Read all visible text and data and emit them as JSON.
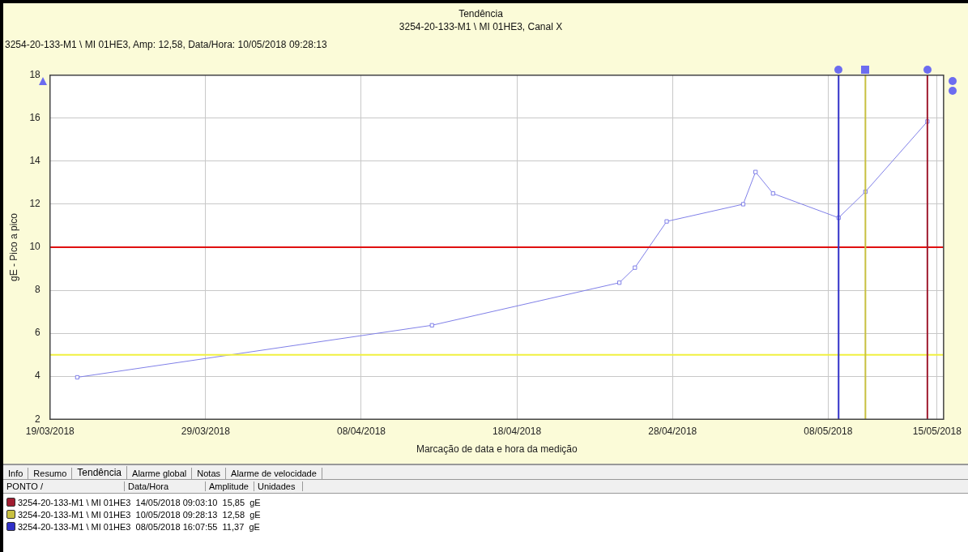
{
  "chart_data": {
    "type": "line",
    "title": "Tendência",
    "subtitle": "3254-20-133-M1 \\ MI 01HE3, Canal X",
    "xlabel": "Marcação de data e hora da medição",
    "ylabel": "gE - Pico a pico",
    "x": [
      "2018-03-20T18:00",
      "2018-04-12T13:00",
      "2018-04-24T14:00",
      "2018-04-25T14:00",
      "2018-04-27T15:00",
      "2018-05-02T13:00",
      "2018-05-03T08:00",
      "2018-05-04T11:00",
      "2018-05-08T16:07",
      "2018-05-10T09:28",
      "2018-05-14T09:03"
    ],
    "series": [
      {
        "color": "#8080e8",
        "values": [
          3.95,
          6.37,
          8.35,
          9.05,
          11.2,
          12.0,
          13.5,
          12.5,
          11.37,
          12.58,
          15.85
        ]
      }
    ],
    "xlim": [
      "2018-03-19",
      "2018-05-15T10:00"
    ],
    "xticks": [
      {
        "value": "2018-03-19",
        "label": "19/03/2018"
      },
      {
        "value": "2018-03-29",
        "label": "29/03/2018"
      },
      {
        "value": "2018-04-08",
        "label": "08/04/2018"
      },
      {
        "value": "2018-04-18",
        "label": "18/04/2018"
      },
      {
        "value": "2018-04-28",
        "label": "28/04/2018"
      },
      {
        "value": "2018-05-08",
        "label": "08/05/2018"
      },
      {
        "value": "2018-05-15",
        "label": "15/05/2018"
      }
    ],
    "ylim": [
      2,
      18
    ],
    "yticks": [
      2,
      4,
      6,
      8,
      10,
      12,
      14,
      16,
      18
    ],
    "ref_lines": [
      {
        "axis": "y",
        "value": 10,
        "color": "#e01010"
      },
      {
        "axis": "y",
        "value": 5,
        "color": "#f0f040"
      },
      {
        "axis": "x",
        "value": "2018-05-14T09:03",
        "color": "#a01c30"
      },
      {
        "axis": "x",
        "value": "2018-05-10T09:28",
        "color": "#c8c040"
      },
      {
        "axis": "x",
        "value": "2018-05-08T16:07",
        "color": "#3030c8"
      }
    ],
    "grid": true,
    "legend": false,
    "marker": "square",
    "line_style": "solid",
    "annotations": [
      "3254-20-133-M1 \\ MI 01HE3, Amp: 12,58, Data/Hora: 10/05/2018 09:28:13",
      "Info",
      "Resumo",
      "Tendência",
      "Alarme global",
      "Notas",
      "Alarme de velocidade",
      "PONTO /",
      "Data/Hora",
      "Amplitude",
      "Unidades",
      "3254-20-133-M1 \\ MI 01HE3  14/05/2018 09:03:10  15,85  gE",
      "3254-20-133-M1 \\ MI 01HE3  10/05/2018 09:28:13  12,58  gE",
      "3254-20-133-M1 \\ MI 01HE3  08/05/2018 16:07:55  11,37  gE"
    ]
  }
}
